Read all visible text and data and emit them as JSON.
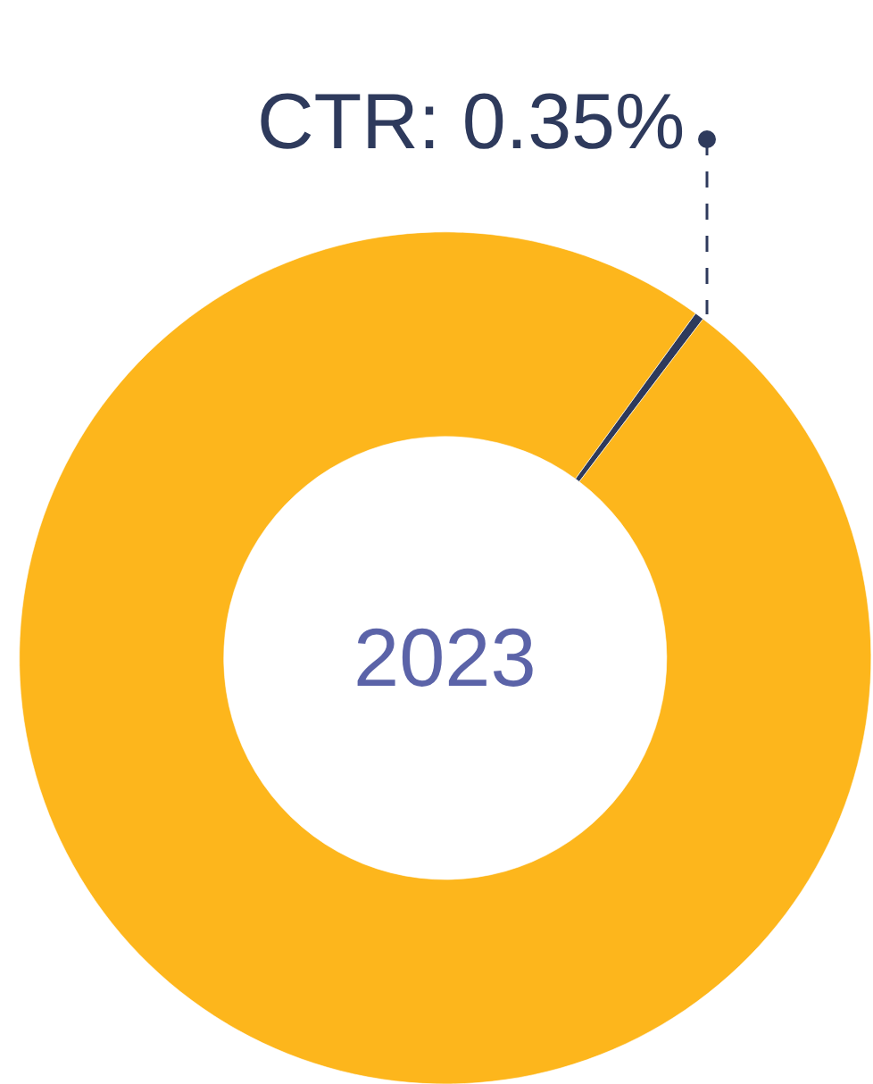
{
  "chart_data": {
    "type": "donut",
    "title": "2023",
    "categories": [
      null,
      null
    ],
    "values": [
      0.35,
      99.65
    ],
    "colors": [
      "#2e3a5c",
      "#fdb61c"
    ],
    "annotations": [
      "CTR: 0.35%"
    ],
    "legend": false
  }
}
